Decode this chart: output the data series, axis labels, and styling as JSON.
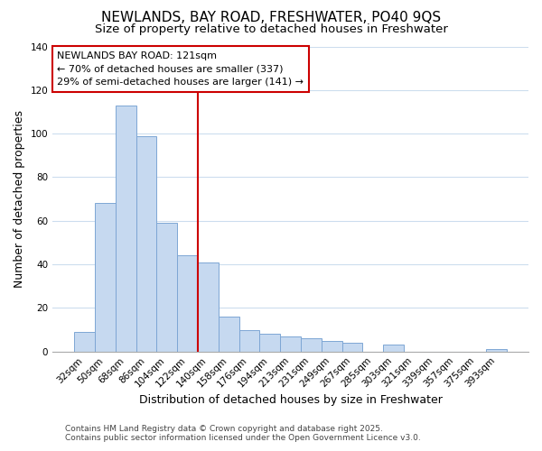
{
  "title1": "NEWLANDS, BAY ROAD, FRESHWATER, PO40 9QS",
  "title2": "Size of property relative to detached houses in Freshwater",
  "xlabel": "Distribution of detached houses by size in Freshwater",
  "ylabel": "Number of detached properties",
  "bar_labels": [
    "32sqm",
    "50sqm",
    "68sqm",
    "86sqm",
    "104sqm",
    "122sqm",
    "140sqm",
    "158sqm",
    "176sqm",
    "194sqm",
    "213sqm",
    "231sqm",
    "249sqm",
    "267sqm",
    "285sqm",
    "303sqm",
    "321sqm",
    "339sqm",
    "357sqm",
    "375sqm",
    "393sqm"
  ],
  "bar_values": [
    9,
    68,
    113,
    99,
    59,
    44,
    41,
    16,
    10,
    8,
    7,
    6,
    5,
    4,
    0,
    3,
    0,
    0,
    0,
    0,
    1
  ],
  "bar_color": "#c6d9f0",
  "bar_edge_color": "#7da6d4",
  "vline_x": 5.5,
  "vline_color": "#cc0000",
  "ylim": [
    0,
    140
  ],
  "annotation_title": "NEWLANDS BAY ROAD: 121sqm",
  "annotation_line1": "← 70% of detached houses are smaller (337)",
  "annotation_line2": "29% of semi-detached houses are larger (141) →",
  "annotation_box_color": "#ffffff",
  "annotation_box_edge": "#cc0000",
  "footer1": "Contains HM Land Registry data © Crown copyright and database right 2025.",
  "footer2": "Contains public sector information licensed under the Open Government Licence v3.0.",
  "background_color": "#ffffff",
  "grid_color": "#ccddee",
  "title_fontsize": 11,
  "subtitle_fontsize": 9.5,
  "axis_label_fontsize": 9,
  "tick_fontsize": 7.5,
  "annotation_fontsize": 8,
  "footer_fontsize": 6.5
}
